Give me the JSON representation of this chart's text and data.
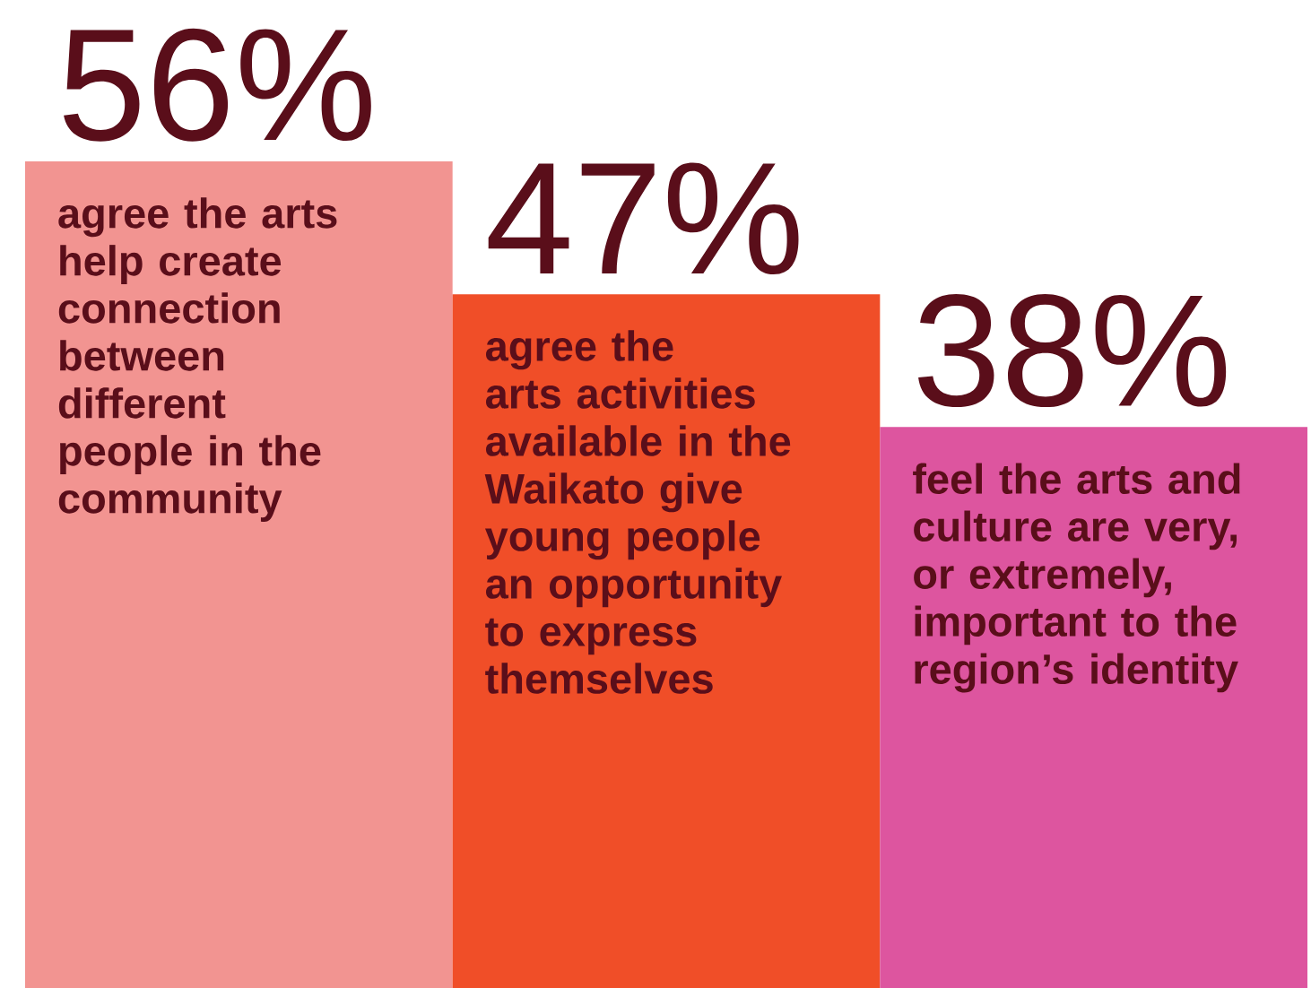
{
  "chart_data": {
    "type": "bar",
    "categories": [
      "agree the arts help create connection between different people in the community",
      "agree the arts activities available in the Waikato give young people an opportunity to express themselves",
      "feel the arts and culture are very, or extremely, important to the region’s identity"
    ],
    "values": [
      56,
      47,
      38
    ],
    "value_labels": [
      "56%",
      "47%",
      "38%"
    ],
    "colors": [
      "#f29491",
      "#f04e28",
      "#dd559f"
    ],
    "tick_labels": false
  }
}
